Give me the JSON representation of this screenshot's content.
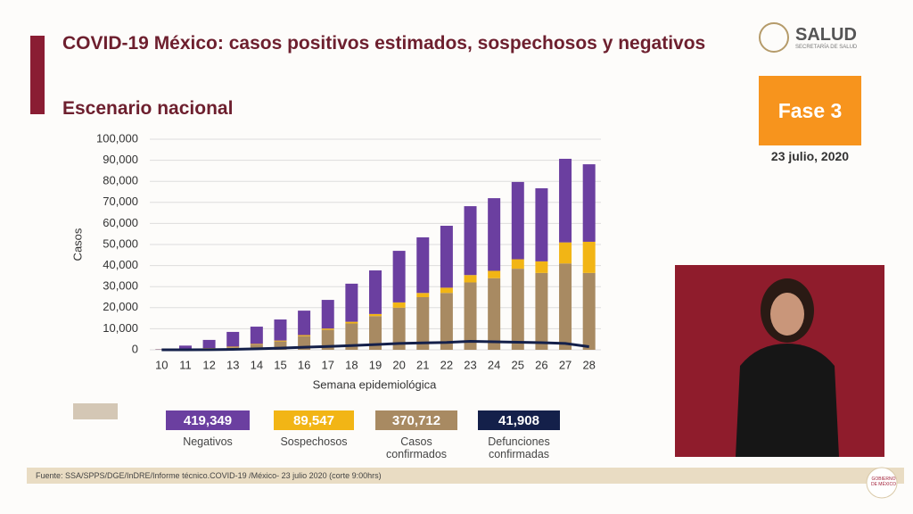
{
  "slide": {
    "title": "COVID-19 México: casos positivos estimados, sospechosos y negativos",
    "subtitle": "Escenario nacional",
    "logo": "SALUD",
    "logo_sub": "SECRETARÍA DE SALUD",
    "phase": "Fase 3",
    "date": "23 julio, 2020",
    "source": "Fuente: SSA/SPPS/DGE/InDRE/Informe técnico.COVID-19 /México- 23 julio 2020 (corte 9:00hrs)",
    "footer_logo": "GOBIERNO DE MÉXICO"
  },
  "chart_data": {
    "type": "bar",
    "stacked": true,
    "grid": true,
    "x_label": "Semana epidemiológica",
    "y_label": "Casos",
    "categories": [
      "10",
      "11",
      "12",
      "13",
      "14",
      "15",
      "16",
      "17",
      "18",
      "19",
      "20",
      "21",
      "22",
      "23",
      "24",
      "25",
      "26",
      "27",
      "28"
    ],
    "ylim": [
      0,
      100000
    ],
    "yticks": [
      0,
      {
        "value": 10000,
        "label": "10,000"
      },
      {
        "value": 20000,
        "label": "20,000"
      },
      {
        "value": 30000,
        "label": "30,000"
      },
      {
        "value": 40000,
        "label": "40,000"
      },
      {
        "value": 50000,
        "label": "50,000"
      },
      {
        "value": 60000,
        "label": "60,000"
      },
      {
        "value": 70000,
        "label": "70,000"
      },
      {
        "value": 80000,
        "label": "80,000"
      },
      {
        "value": 90000,
        "label": "90,000"
      },
      {
        "value": 100000,
        "label": "100,000"
      }
    ],
    "series": [
      {
        "name": "Casos confirmados",
        "color": "#a88a62",
        "total": "370,712",
        "values": [
          100,
          200,
          600,
          1200,
          2500,
          4000,
          6500,
          9500,
          12500,
          16000,
          20000,
          25000,
          27000,
          32000,
          34000,
          38500,
          36500,
          41000,
          36500
        ]
      },
      {
        "name": "Sospechosos",
        "color": "#f2b515",
        "total": "89,547",
        "values": [
          50,
          100,
          200,
          300,
          300,
          400,
          500,
          600,
          800,
          1000,
          2500,
          2000,
          2500,
          3500,
          3500,
          4500,
          5500,
          10000,
          14800
        ]
      },
      {
        "name": "Negativos",
        "color": "#6b3fa0",
        "total": "419,349",
        "values": [
          150,
          1700,
          3900,
          7000,
          8200,
          10000,
          11600,
          13600,
          18100,
          20700,
          24500,
          26400,
          29400,
          32700,
          34500,
          36700,
          34700,
          39700,
          36800
        ]
      },
      {
        "name": "Defunciones confirmadas",
        "color": "#14204a",
        "type": "line",
        "total": "41,908",
        "values": [
          0,
          0,
          50,
          200,
          500,
          800,
          1200,
          1600,
          2000,
          2500,
          3000,
          3300,
          3500,
          4000,
          3800,
          3600,
          3400,
          3000,
          1500
        ]
      }
    ]
  }
}
